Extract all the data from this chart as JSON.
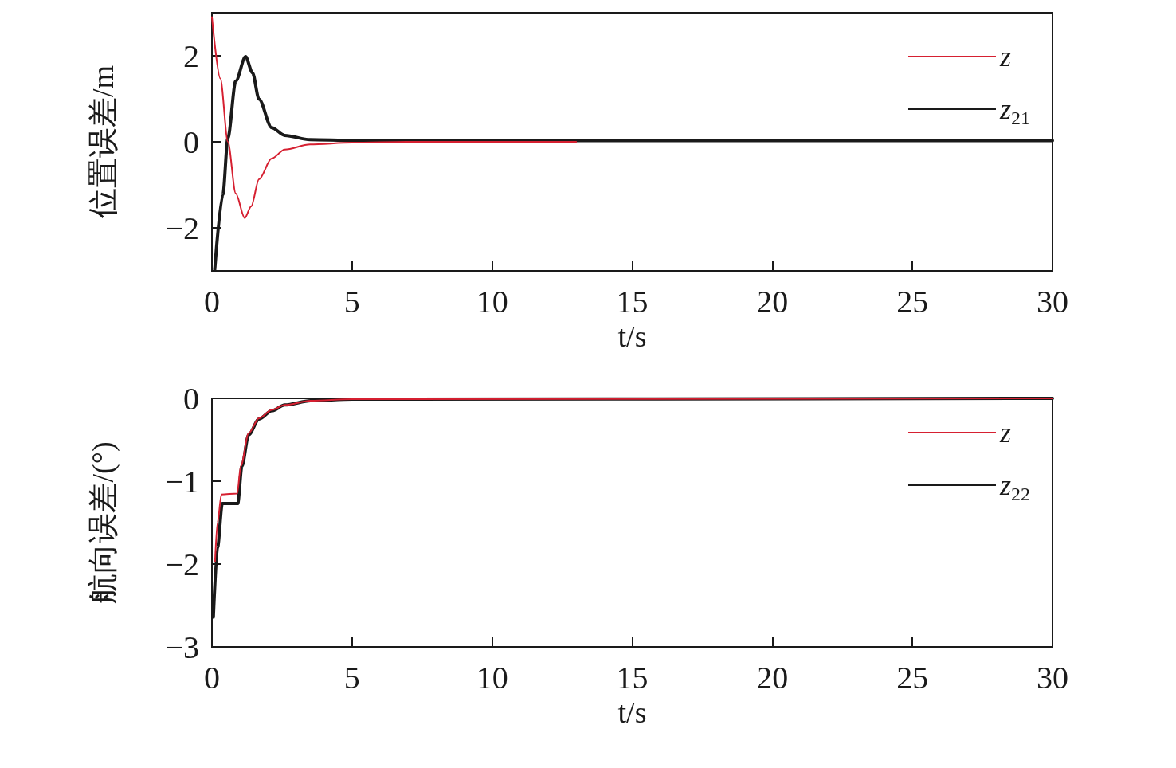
{
  "chart_data": [
    {
      "type": "line",
      "xlabel": "t/s",
      "ylabel": "位置误差/m",
      "xlim": [
        0,
        30
      ],
      "xticks": [
        0,
        5,
        10,
        15,
        20,
        25,
        30
      ],
      "ylim": [
        -3,
        3
      ],
      "yticks": [
        -2,
        0,
        2
      ],
      "grid": false,
      "legend": "top right",
      "line_style": "solid",
      "marker": "none",
      "series": [
        {
          "name": "z",
          "color": "#d62031",
          "x": [
            0,
            0.3,
            0.57,
            0.85,
            1.17,
            1.4,
            1.68,
            2.13,
            2.6,
            3.5,
            5,
            7,
            13
          ],
          "values": [
            2.9,
            1.47,
            0,
            -1.2,
            -1.77,
            -1.5,
            -0.87,
            -0.39,
            -0.18,
            -0.06,
            -0.02,
            0,
            0
          ]
        },
        {
          "name": "z$_{21}$",
          "color": "#1a1a1a",
          "x": [
            0.1,
            0.39,
            0.57,
            0.85,
            1.2,
            1.45,
            1.68,
            2.13,
            2.6,
            3.5,
            5,
            10,
            30
          ],
          "values": [
            -2.97,
            -1.23,
            0.09,
            1.41,
            1.98,
            1.6,
            0.99,
            0.33,
            0.15,
            0.05,
            0.03,
            0.03,
            0.03
          ]
        }
      ]
    },
    {
      "type": "line",
      "xlabel": "t/s",
      "ylabel": "航向误差/(°)",
      "xlim": [
        0,
        30
      ],
      "xticks": [
        0,
        5,
        10,
        15,
        20,
        25,
        30
      ],
      "ylim": [
        -3,
        0
      ],
      "yticks": [
        -3,
        -2,
        -1,
        0
      ],
      "grid": false,
      "legend": "top right",
      "line_style": "solid",
      "marker": "none",
      "series": [
        {
          "name": "z",
          "color": "#d62031",
          "x": [
            0.11,
            0.2,
            0.34,
            0.9,
            1.03,
            1.31,
            1.68,
            2.14,
            2.6,
            3.52,
            5,
            30
          ],
          "values": [
            -1.97,
            -1.5,
            -1.16,
            -1.15,
            -0.82,
            -0.42,
            -0.24,
            -0.14,
            -0.08,
            -0.03,
            -0.01,
            0
          ]
        },
        {
          "name": "z$_{22}$",
          "color": "#1a1a1a",
          "x": [
            0.05,
            0.2,
            0.37,
            0.92,
            1.07,
            1.31,
            1.68,
            2.14,
            2.6,
            3.52,
            5,
            30
          ],
          "values": [
            -2.64,
            -1.8,
            -1.27,
            -1.27,
            -0.82,
            -0.44,
            -0.25,
            -0.15,
            -0.08,
            -0.03,
            -0.01,
            0
          ]
        }
      ]
    }
  ]
}
